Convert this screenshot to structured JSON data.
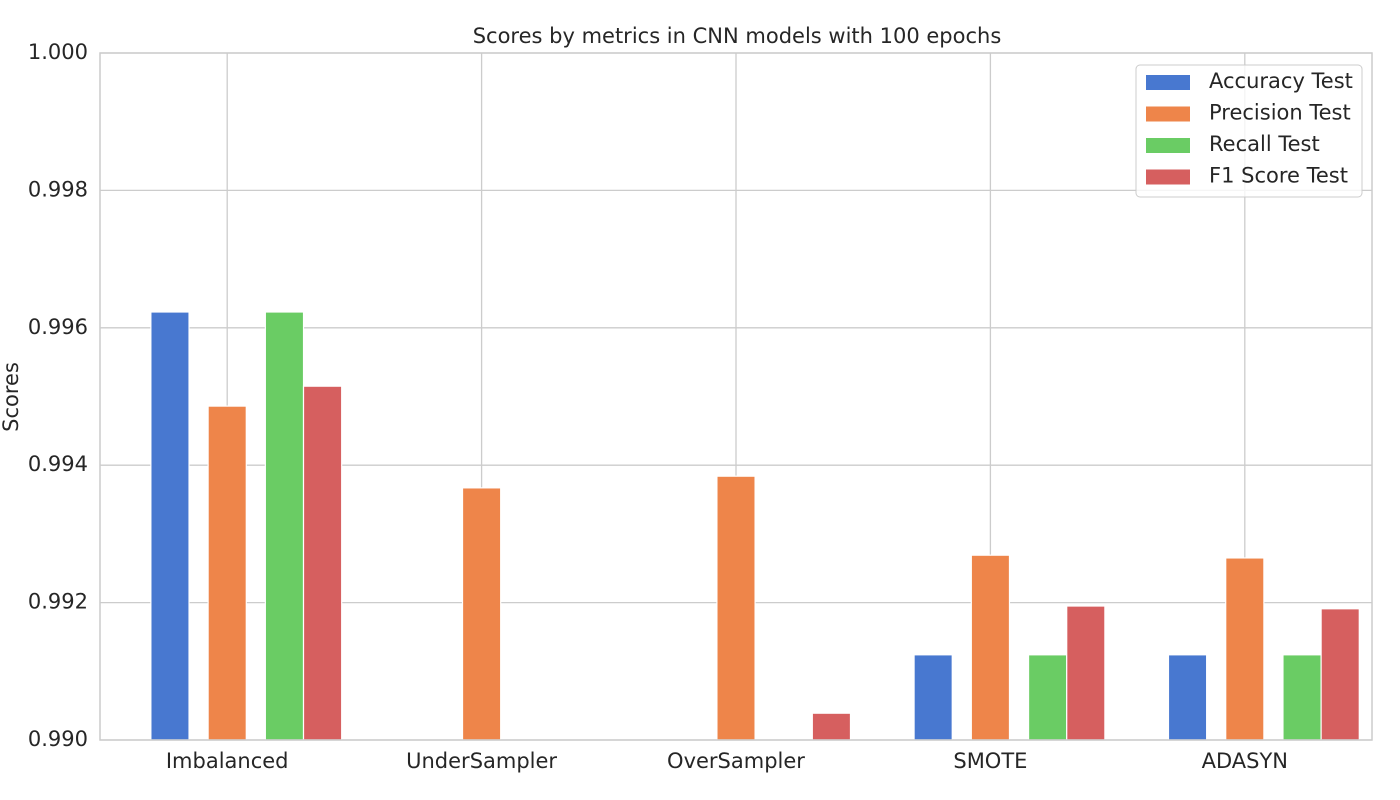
{
  "chart_data": {
    "type": "bar",
    "title": "Scores by metrics in CNN models with 100 epochs",
    "y_label": "Scores",
    "categories": [
      "Imbalanced",
      "UnderSampler",
      "OverSampler",
      "SMOTE",
      "ADASYN"
    ],
    "series": [
      {
        "name": "Accuracy Test",
        "color": "#4878d0",
        "values": [
          0.99623,
          null,
          null,
          0.99124,
          0.99124
        ]
      },
      {
        "name": "Precision Test",
        "color": "#ee854a",
        "values": [
          0.99486,
          0.99367,
          0.99384,
          0.99269,
          0.99265
        ]
      },
      {
        "name": "Recall Test",
        "color": "#6acc64",
        "values": [
          0.99623,
          null,
          null,
          0.99124,
          0.99124
        ]
      },
      {
        "name": "F1 Score Test",
        "color": "#d65f5f",
        "values": [
          0.99515,
          null,
          0.99039,
          0.99195,
          0.99191
        ]
      }
    ],
    "ylim": [
      0.99,
      1.0
    ],
    "yticks": [
      {
        "value": 0.99,
        "label": "0.990"
      },
      0.992,
      0.994,
      0.996,
      0.998,
      {
        "value": 1.0,
        "label": "1.000"
      }
    ],
    "grid": true,
    "legend": "upper right"
  }
}
